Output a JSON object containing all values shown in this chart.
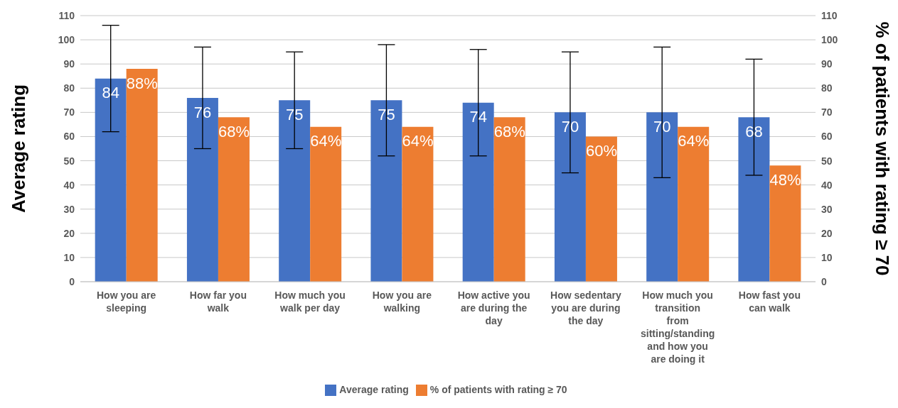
{
  "chart_data": {
    "type": "bar",
    "ylabel": "Average rating",
    "y2label": "% of patients with rating ≥ 70",
    "categories": [
      "How you are sleeping",
      "How far you walk",
      "How much you walk per day",
      "How you are walking",
      "How active you are during the day",
      "How sedentary you are during the day",
      "How much you transition from sitting/standing and how you are doing it",
      "How fast you can walk"
    ],
    "series": [
      {
        "name": "Average rating",
        "color": "#4472c4",
        "values": [
          84,
          76,
          75,
          75,
          74,
          70,
          70,
          68
        ],
        "value_labels": [
          "84",
          "76",
          "75",
          "75",
          "74",
          "70",
          "70",
          "68"
        ],
        "errors": [
          [
            62,
            106
          ],
          [
            55,
            97
          ],
          [
            55,
            95
          ],
          [
            52,
            98
          ],
          [
            52,
            96
          ],
          [
            45,
            95
          ],
          [
            43,
            97
          ],
          [
            44,
            92
          ]
        ]
      },
      {
        "name": "% of patients with rating ≥ 70",
        "color": "#ed7d31",
        "axis": "y2",
        "values": [
          88,
          68,
          64,
          64,
          68,
          60,
          64,
          48
        ],
        "value_labels": [
          "88%",
          "68%",
          "64%",
          "64%",
          "68%",
          "60%",
          "64%",
          "48%"
        ]
      }
    ],
    "ylim": [
      0,
      110
    ],
    "yticks": [
      0,
      10,
      20,
      30,
      40,
      50,
      60,
      70,
      80,
      90,
      100,
      110
    ],
    "y2lim": [
      0,
      110
    ],
    "y2ticks": [
      0,
      10,
      20,
      30,
      40,
      50,
      60,
      70,
      80,
      90,
      100,
      110
    ],
    "grid": "y",
    "legend": "bottom"
  }
}
